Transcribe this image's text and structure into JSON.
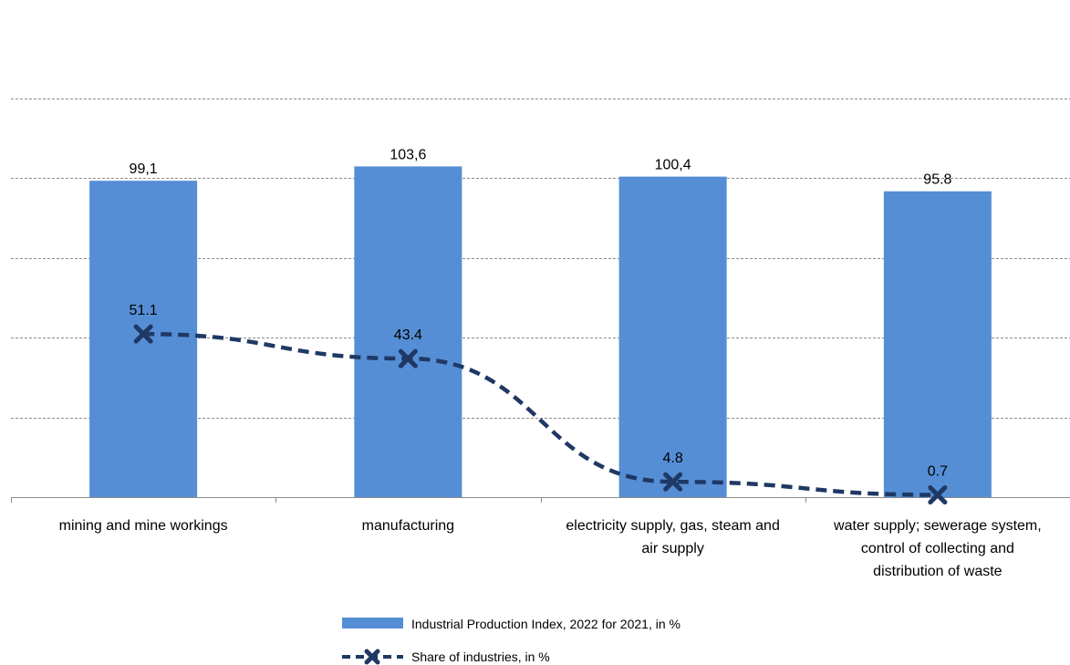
{
  "chart_data": {
    "type": "bar",
    "categories": [
      [
        "mining and mine workings"
      ],
      [
        "manufacturing"
      ],
      [
        "electricity supply, gas, steam and",
        "air supply"
      ],
      [
        "water supply; sewerage system,",
        "control of collecting and",
        "distribution of waste"
      ]
    ],
    "series": [
      {
        "name": "Industrial Production Index, 2022 for 2021, in %",
        "kind": "bar",
        "values": [
          99.1,
          103.6,
          100.4,
          95.8
        ],
        "labels": [
          "99,1",
          "103,6",
          "100,4",
          "95.8"
        ],
        "color": "#558ed5"
      },
      {
        "name": "Share of industries, in %",
        "kind": "line",
        "style": "dashed",
        "marker": "x",
        "values": [
          51.1,
          43.4,
          4.8,
          0.7
        ],
        "labels": [
          "51.1",
          "43.4",
          "4.8",
          "0.7"
        ],
        "color": "#1f3864"
      }
    ],
    "ylim": [
      0,
      125
    ],
    "grid": true,
    "legend": "bottom-center"
  }
}
